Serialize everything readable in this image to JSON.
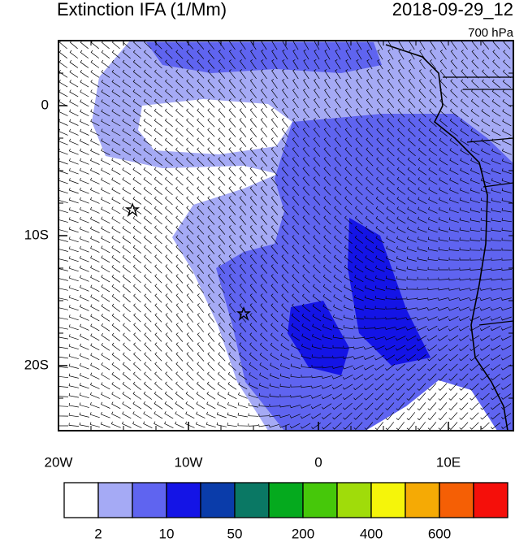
{
  "header": {
    "title": "Extinction IFA (1/Mm)",
    "time": "2018-09-29_12",
    "level": "700 hPa"
  },
  "map": {
    "lon_range": [
      -20,
      15
    ],
    "lat_range": [
      -25,
      5
    ],
    "lon_ticks": [
      {
        "value": -20,
        "label": "20W"
      },
      {
        "value": -10,
        "label": "10W"
      },
      0,
      {
        "value": 10,
        "label": "10E"
      }
    ],
    "lat_ticks": [
      0,
      {
        "value": -10,
        "label": "10S"
      },
      {
        "value": -20,
        "label": "20S"
      }
    ]
  },
  "colorbar": {
    "colors": [
      "#ffffff",
      "#a5aaf5",
      "#5f64f0",
      "#1414e6",
      "#0a3caa",
      "#0a7864",
      "#05aa1e",
      "#46c80a",
      "#a0dc0a",
      "#f5f50a",
      "#f5aa05",
      "#f55f05",
      "#f50f0a"
    ],
    "labels": [
      2,
      10,
      50,
      200,
      400,
      600
    ]
  }
}
